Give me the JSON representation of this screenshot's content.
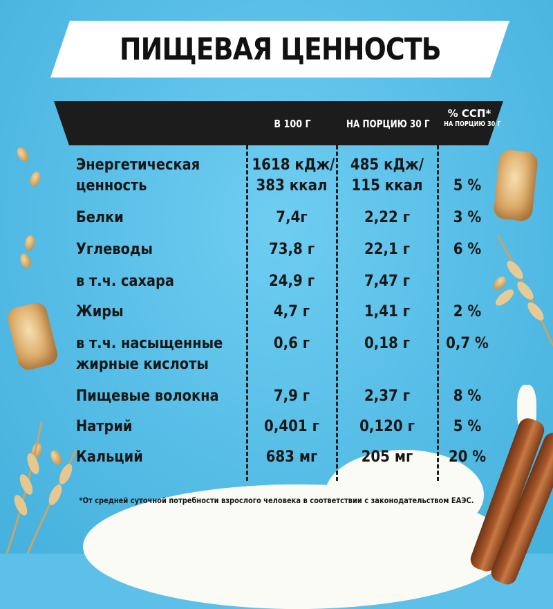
{
  "title": "ПИЩЕВАЯ ЦЕННОСТЬ",
  "table": {
    "columns": {
      "per100": "В 100 Г",
      "perServing": "НА ПОРЦИЮ 30 Г",
      "percentTitle": "% ССП*",
      "percentSub": "НА ПОРЦИЮ 30 Г"
    },
    "rows": [
      {
        "label": "Энергетическая\nценность",
        "per100": "1618 кДж/\n383 ккал",
        "perServing": "485 кДж/\n115 ккал",
        "percent": "5 %"
      },
      {
        "label": "Белки",
        "per100": "7,4г",
        "perServing": "2,22 г",
        "percent": "3 %"
      },
      {
        "label": "Углеводы",
        "per100": "73,8 г",
        "perServing": "22,1 г",
        "percent": "6 %"
      },
      {
        "label": "в т.ч. сахара",
        "per100": "24,9 г",
        "perServing": "7,47 г",
        "percent": ""
      },
      {
        "label": "Жиры",
        "per100": "4,7 г",
        "perServing": "1,41 г",
        "percent": "2 %"
      },
      {
        "label": "в т.ч. насыщенные\nжирные кислоты",
        "per100": "0,6 г",
        "perServing": "0,18 г",
        "percent": "0,7 %"
      },
      {
        "label": "Пищевые волокна",
        "per100": "7,9 г",
        "perServing": "2,37 г",
        "percent": "8 %"
      },
      {
        "label": "Натрий",
        "per100": "0,401 г",
        "perServing": "0,120 г",
        "percent": "5 %"
      },
      {
        "label": "Кальций",
        "per100": "683 мг",
        "perServing": "205 мг",
        "percent": "20 %"
      }
    ]
  },
  "footnote": "*От средней суточной потребности взрослого человека в соответствии с законодательством ЕАЭС.",
  "colors": {
    "background": "#5cc0e8",
    "header": "#1c1c1c",
    "text": "#171717"
  }
}
